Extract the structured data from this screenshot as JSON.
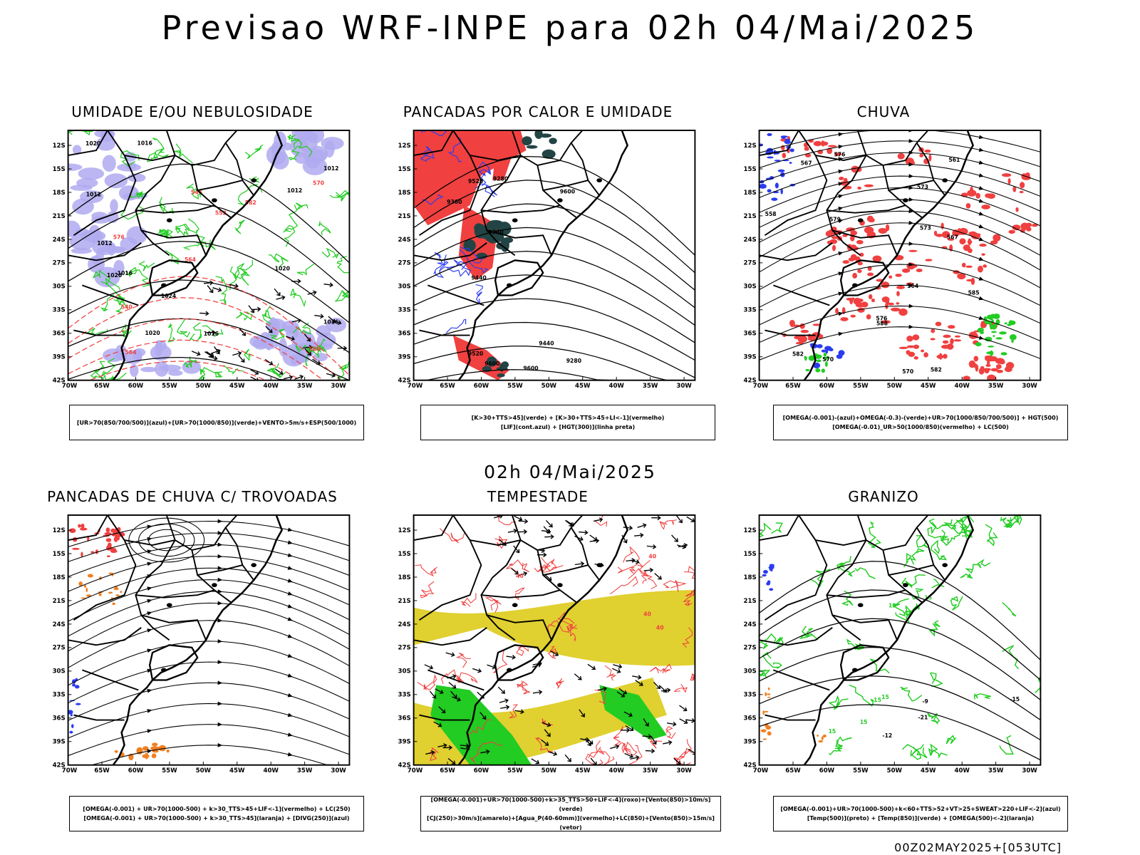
{
  "header": {
    "title": "Previsao WRF-INPE  para 02h 04/Mai/2025",
    "mid_title": "02h 04/Mai/2025",
    "footer": "00Z02MAY2025+[053UTC]"
  },
  "axes": {
    "lat_labels": [
      "12S",
      "15S",
      "18S",
      "21S",
      "24S",
      "27S",
      "30S",
      "33S",
      "36S",
      "39S",
      "42S"
    ],
    "lon_labels": [
      "70W",
      "65W",
      "60W",
      "55W",
      "50W",
      "45W",
      "40W",
      "35W",
      "30W"
    ]
  },
  "colors": {
    "red": "#f04040",
    "green": "#22cc22",
    "blue": "#2a3cf0",
    "lilac": "#b0aaf0",
    "darkteal": "#224444",
    "yellow": "#e0d030",
    "orange": "#f08020"
  },
  "panels": [
    {
      "id": "umidade",
      "title": "UMIDADE E/OU NEBULOSIDADE",
      "legend": [
        "[UR>70(850/700/500)](azul)+[UR>70(1000/850)](verde)+VENTO>5m/s+ESP(500/1000)"
      ],
      "contour_labels": [
        "1012",
        "1016",
        "1020",
        "1024",
        "1012",
        "1016",
        "1020",
        "1020",
        "1016",
        "1012",
        "1012",
        "1016",
        "1020",
        "588",
        "576",
        "570",
        "564",
        "582",
        "564",
        "546",
        "552",
        "540"
      ]
    },
    {
      "id": "pancadas-calor",
      "title": "PANCADAS POR CALOR E UMIDADE",
      "legend": [
        "[K>30+TTS>45](verde) + [K>30+TTS>45+LI<-1](vermelho)",
        "[LIF](cont.azul) + [HGT(300)](linha preta)"
      ],
      "contour_labels": [
        "9600",
        "9600",
        "9520",
        "9440",
        "9520",
        "9360",
        "9440",
        "9280",
        "9280",
        "9360",
        "9600"
      ]
    },
    {
      "id": "chuva",
      "title": "CHUVA",
      "legend": [
        "[OMEGA(-0.001)-(azul)+OMEGA(-0.3)-(verde)+UR>70(1000/850/700/500)] + HGT(500)",
        "[OMEGA(-0.01)_UR>50(1000/850)(vermelho) + LC(500)"
      ],
      "contour_labels": [
        "585",
        "582",
        "588",
        "582",
        "576",
        "579",
        "576",
        "573",
        "570",
        "567",
        "564",
        "561",
        "558",
        "573",
        "570",
        "567"
      ]
    },
    {
      "id": "trovoadas",
      "title": "PANCADAS DE CHUVA C/ TROVOADAS",
      "legend": [
        "[OMEGA(-0.001) + UR>70(1000-500) + k>30_TTS>45+LIF<-1](vermelho) + LC(250)",
        "[OMEGA(-0.001) + UR>70(1000-500) + k>30_TTS>45](laranja) + [DIVG(250)](azul)"
      ],
      "contour_labels": []
    },
    {
      "id": "tempestade",
      "title": "TEMPESTADE",
      "legend": [
        "[OMEGA(-0.001)+UR>70(1000-500)+k>35_TTS>50+LIF<-4](roxo)+[Vento(850)>10m/s](verde)",
        "[CJ(250)>30m/s](amarelo)+[Agua_P(40-60mm)](vermelho)+LC(850)+[Vento(850)>15m/s](vetor)"
      ],
      "contour_labels": [
        "40",
        "40",
        "40",
        "40"
      ]
    },
    {
      "id": "granizo",
      "title": "GRANIZO",
      "legend": [
        "[OMEGA(-0.001)+UR>70(1000-500)+k<60+TTS>52+VT>25+SWEAT>220+LIF<-2](azul)",
        "[Temp(500)](preto) + [Temp(850)](verde) + [OMEGA(500)<-2](laranja)"
      ],
      "contour_labels": [
        "15",
        "15",
        "15",
        "15",
        "12",
        "15",
        "-21",
        "-15",
        "-9",
        "-12"
      ]
    }
  ]
}
